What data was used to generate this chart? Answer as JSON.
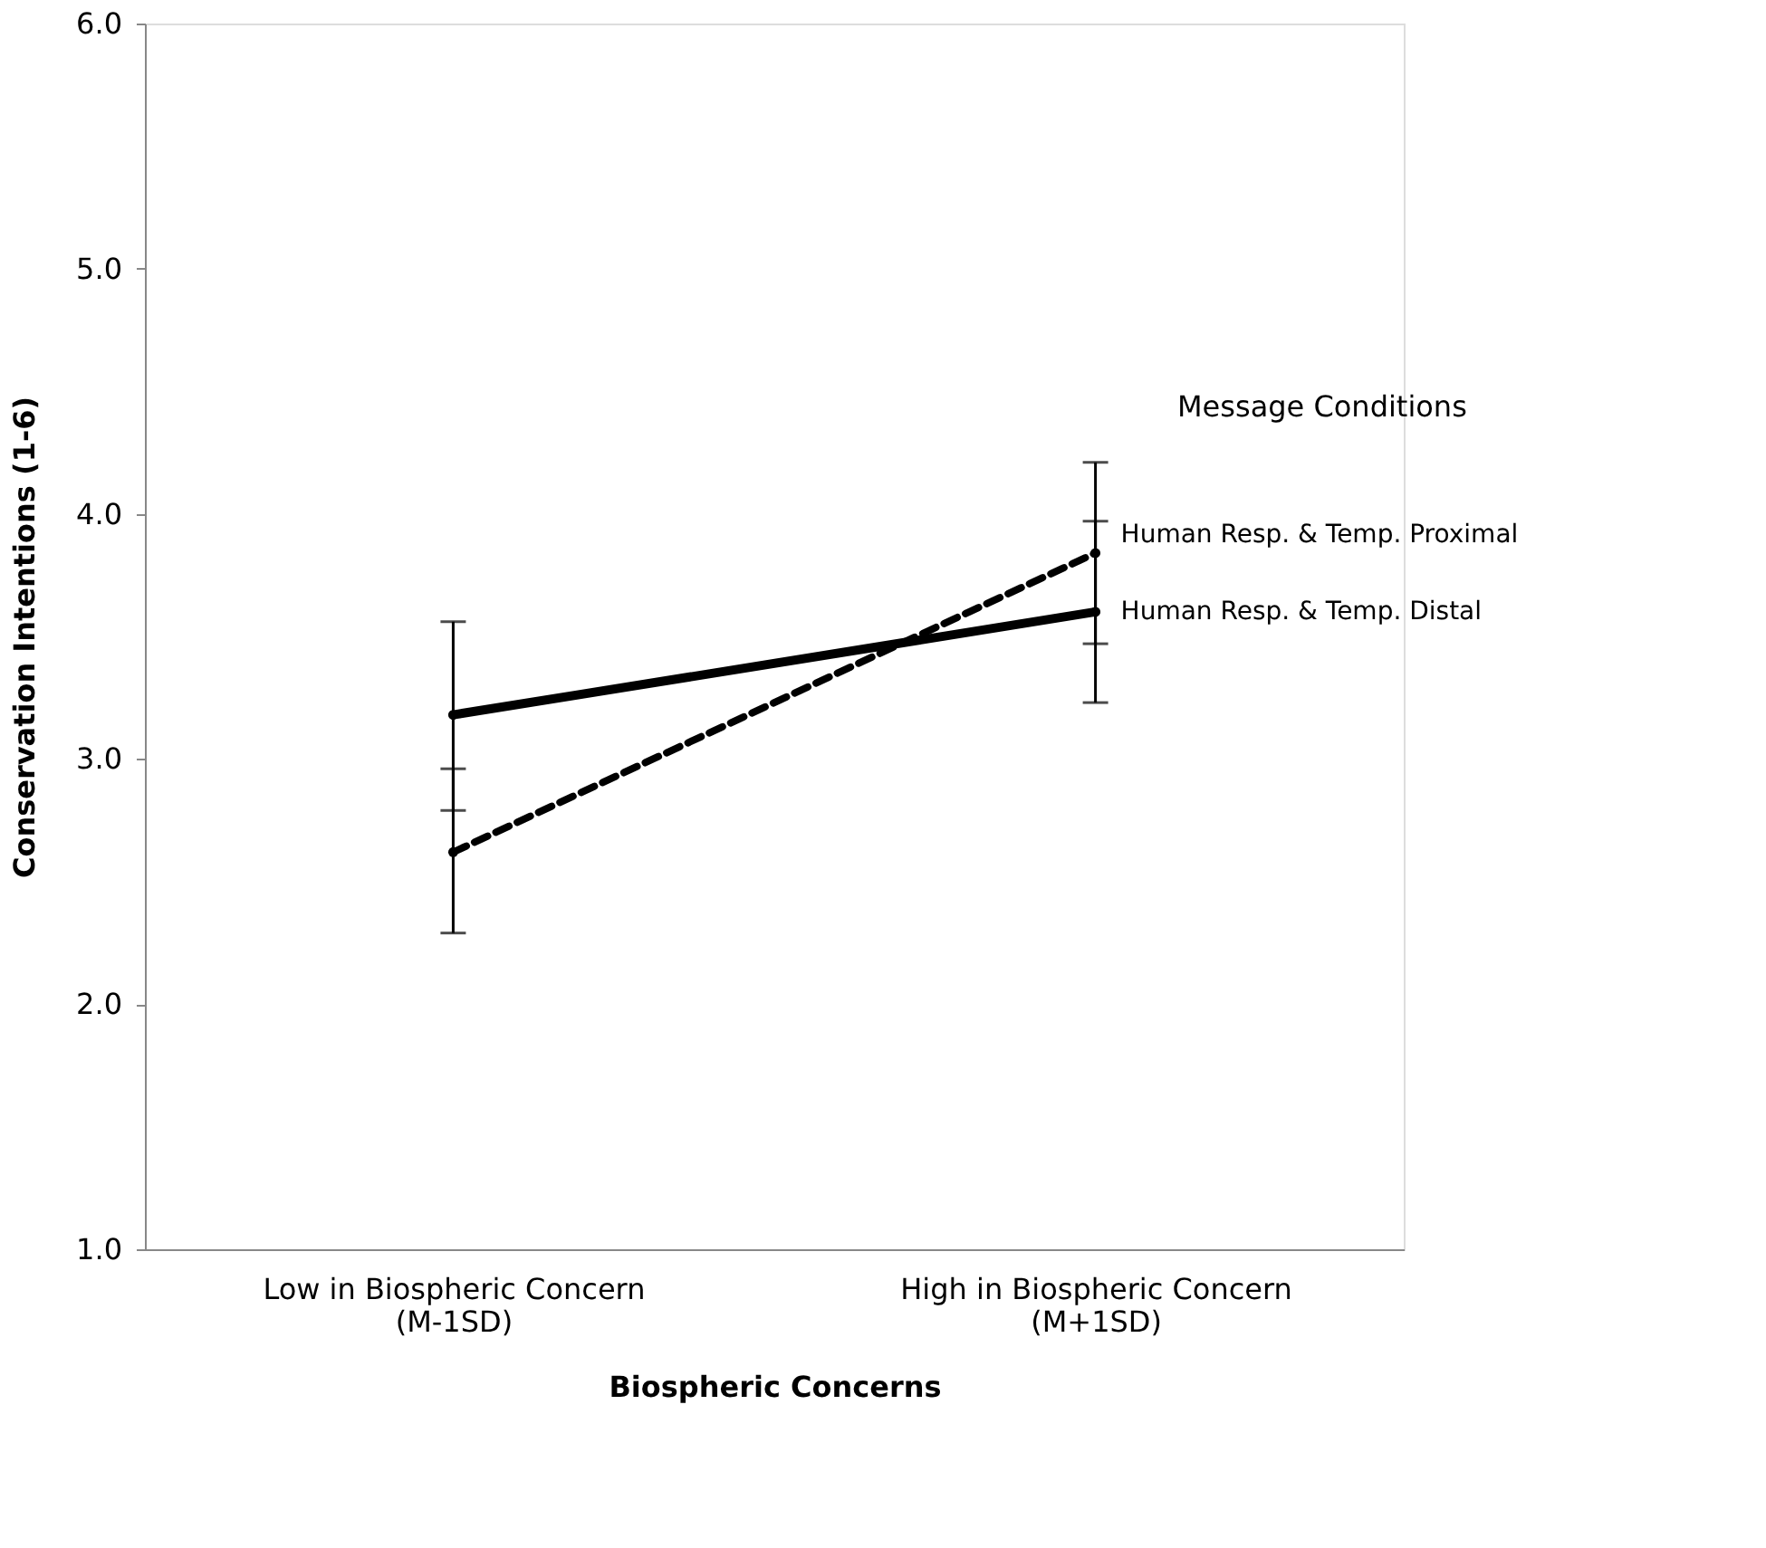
{
  "chart_data": {
    "type": "line",
    "xlabel": "Biospheric Concerns",
    "ylabel": "Conservation Intentions (1-6)",
    "legend_title": "Message Conditions",
    "categories": [
      "Low in Biospheric Concern\n(M-1SD)",
      "High in Biospheric Concern\n(M+1SD)"
    ],
    "series": [
      {
        "name": "Human Resp. & Temp. Proximal",
        "color": "#000000",
        "line_style": "dashed",
        "values": [
          2.62,
          3.84
        ],
        "errors": [
          [
            2.29,
            2.96
          ],
          [
            3.47,
            4.21
          ]
        ]
      },
      {
        "name": "Human Resp. & Temp. Distal",
        "color": "#000000",
        "line_style": "solid",
        "values": [
          3.18,
          3.6
        ],
        "errors": [
          [
            2.79,
            3.56
          ],
          [
            3.23,
            3.97
          ]
        ]
      }
    ],
    "ylim": [
      1.0,
      6.0
    ],
    "yticks": [
      {
        "value": 1,
        "label": "1.0"
      },
      {
        "value": 2,
        "label": "2.0"
      },
      {
        "value": 3,
        "label": "3.0"
      },
      {
        "value": 4,
        "label": "4.0"
      },
      {
        "value": 5,
        "label": "5.0"
      },
      {
        "value": 6,
        "label": "6.0"
      }
    ],
    "grid": false,
    "marker": "circle"
  }
}
